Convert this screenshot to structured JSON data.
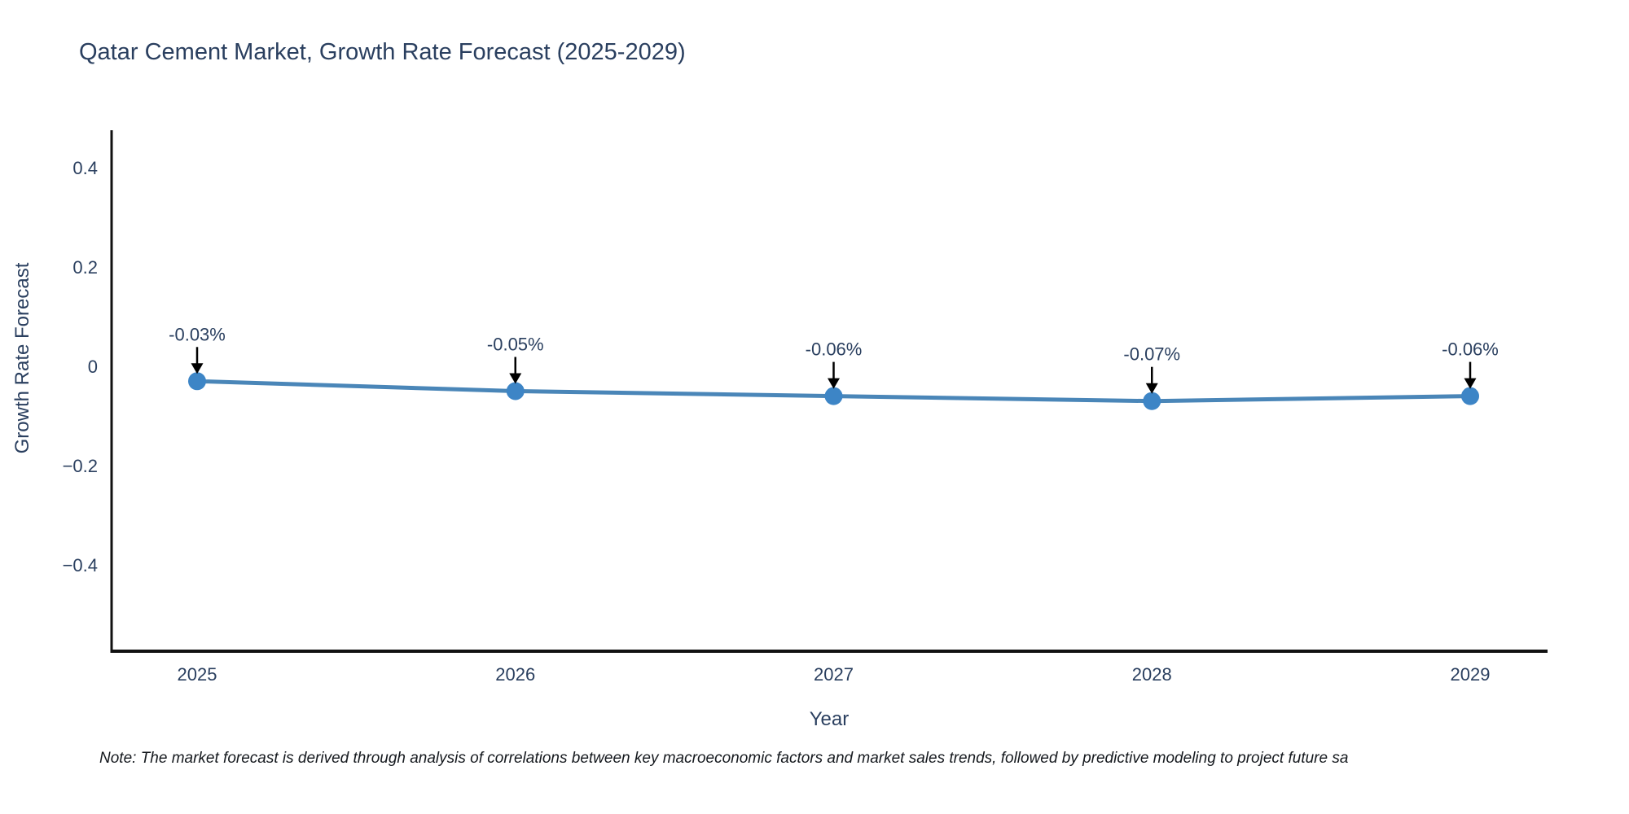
{
  "note": {
    "text": "Note: The market forecast is derived through analysis of correlations between key macroeconomic factors and market sales trends, followed by predictive modeling to project future sa"
  },
  "chart_data": {
    "type": "line",
    "title": "Qatar Cement Market, Growth Rate Forecast (2025-2029)",
    "xlabel": "Year",
    "ylabel": "Growth Rate Forecast",
    "categories": [
      "2025",
      "2026",
      "2027",
      "2028",
      "2029"
    ],
    "values": [
      -0.03,
      -0.05,
      -0.06,
      -0.07,
      -0.06
    ],
    "point_labels": [
      "-0.03%",
      "-0.05%",
      "-0.06%",
      "-0.07%",
      "-0.06%"
    ],
    "yticks": [
      {
        "value": 0.4,
        "label": "0.4"
      },
      {
        "value": 0.2,
        "label": "0.2"
      },
      {
        "value": 0,
        "label": "0"
      },
      {
        "value": -0.2,
        "label": "−0.2"
      },
      {
        "value": -0.4,
        "label": "−0.4"
      }
    ],
    "ylim": [
      -0.57,
      0.47
    ],
    "grid": false,
    "legend": "none",
    "annotations_have_arrows": true,
    "line_color": "#4a86b8",
    "marker_color": "#3d85c6",
    "axis_color": "#111111",
    "text_color": "#2a3f5f",
    "arrow_color": "#000000"
  }
}
